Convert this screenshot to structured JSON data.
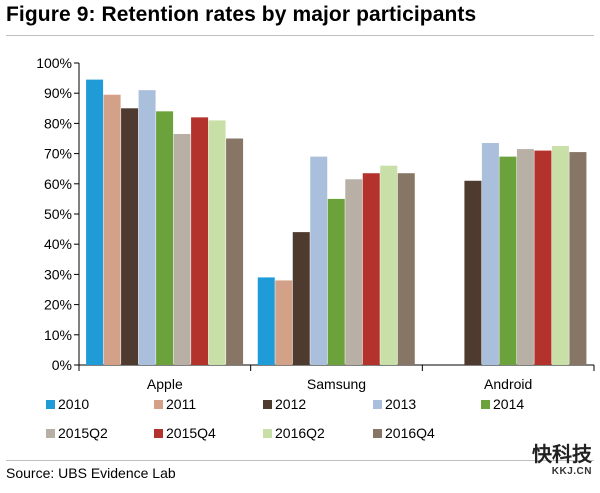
{
  "title": "Figure 9: Retention rates by major participants",
  "source": "Source:  UBS Evidence Lab",
  "watermark": {
    "main": "快科技",
    "sub": "KKJ.CN"
  },
  "chart_data": {
    "type": "bar",
    "title": "Figure 9: Retention rates by major participants",
    "xlabel": "",
    "ylabel": "",
    "ylim": [
      0,
      100
    ],
    "yticks": [
      "0%",
      "10%",
      "20%",
      "30%",
      "40%",
      "50%",
      "60%",
      "70%",
      "80%",
      "90%",
      "100%"
    ],
    "categories": [
      "Apple",
      "Samsung",
      "Android"
    ],
    "legend_position": "bottom",
    "series": [
      {
        "name": "2010",
        "color": "#1f9bd7",
        "values": [
          94.5,
          29,
          null
        ]
      },
      {
        "name": "2011",
        "color": "#d2a188",
        "values": [
          89.5,
          28,
          null
        ]
      },
      {
        "name": "2012",
        "color": "#4f3a30",
        "values": [
          85,
          44,
          61
        ]
      },
      {
        "name": "2013",
        "color": "#a9bfdb",
        "values": [
          91,
          69,
          73.5
        ]
      },
      {
        "name": "2014",
        "color": "#6ba23b",
        "values": [
          84,
          55,
          69
        ]
      },
      {
        "name": "2015Q2",
        "color": "#b8b0a5",
        "values": [
          76.5,
          61.5,
          71.5
        ]
      },
      {
        "name": "2015Q4",
        "color": "#b3332c",
        "values": [
          82,
          63.5,
          71
        ]
      },
      {
        "name": "2016Q2",
        "color": "#c9dfa8",
        "values": [
          81,
          66,
          72.5
        ]
      },
      {
        "name": "2016Q4",
        "color": "#877565",
        "values": [
          75,
          63.5,
          70.5
        ]
      }
    ]
  }
}
